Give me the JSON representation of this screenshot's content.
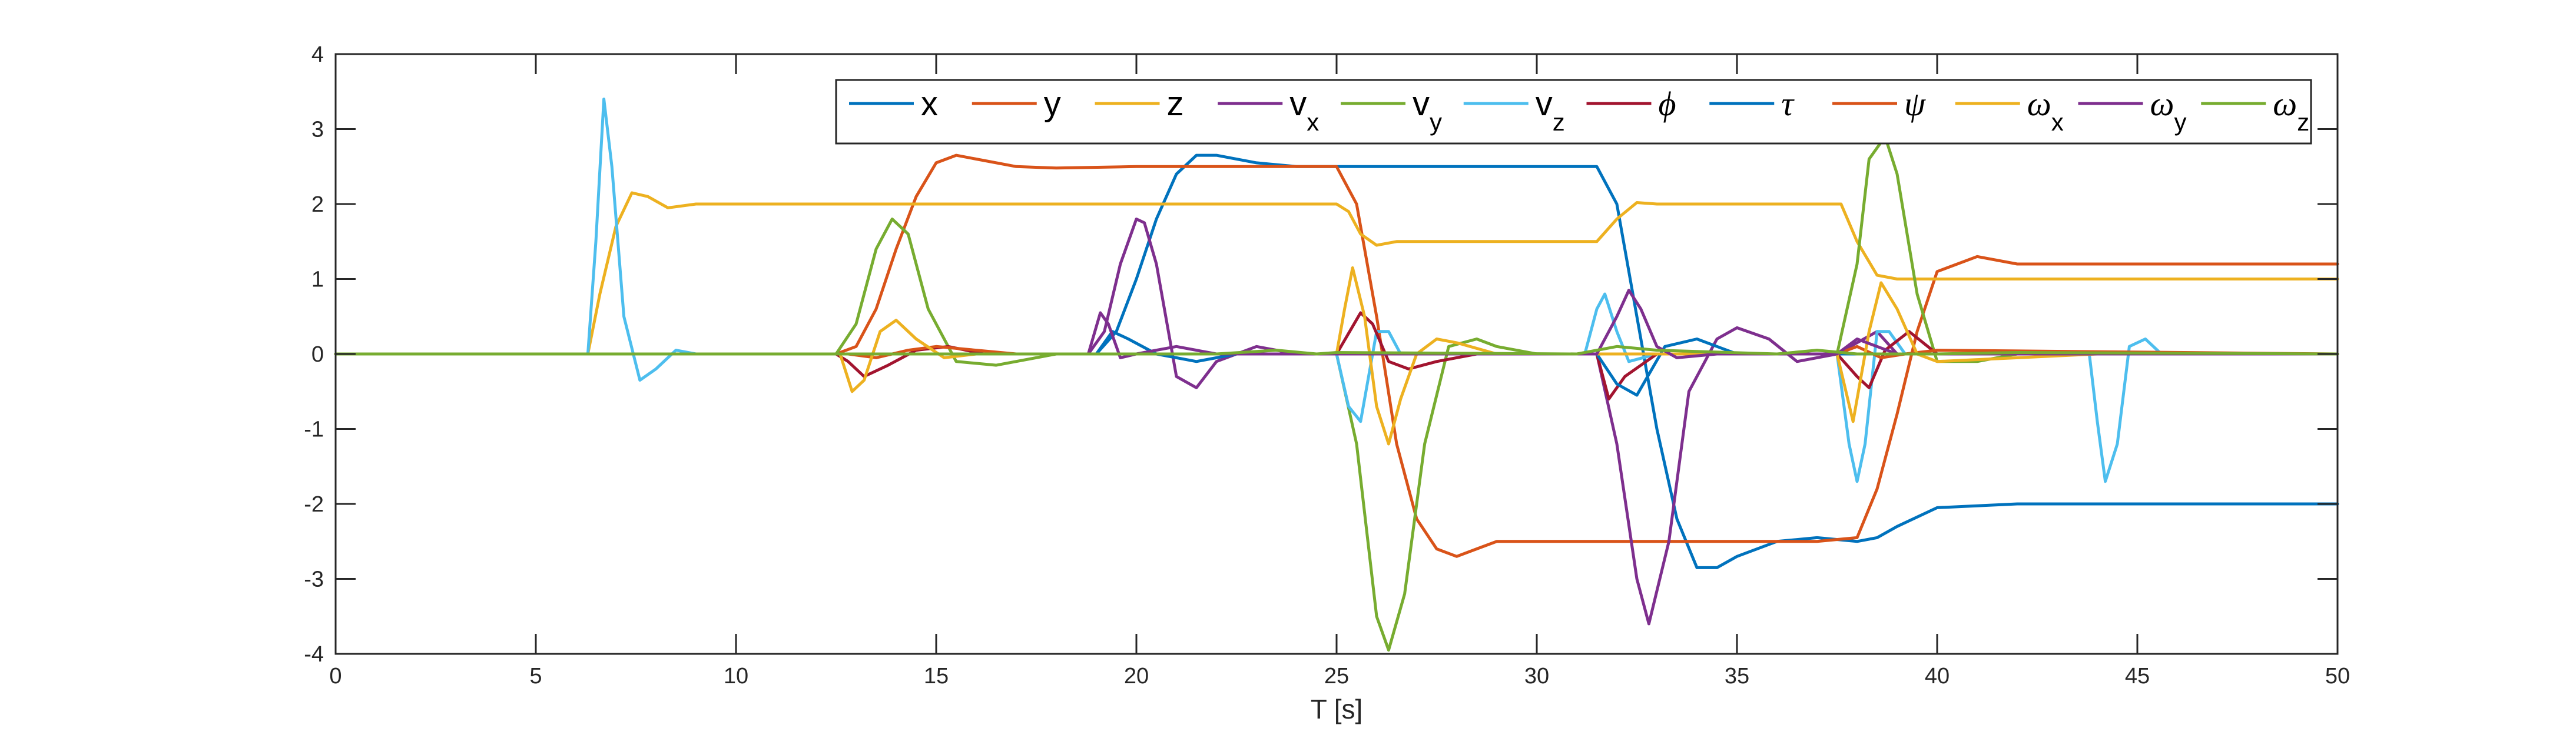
{
  "chart_data": {
    "type": "line",
    "title": "",
    "xlabel": "T [s]",
    "ylabel": "",
    "xlim": [
      0,
      50
    ],
    "ylim": [
      -4,
      4
    ],
    "xticks": [
      0,
      5,
      10,
      15,
      20,
      25,
      30,
      35,
      40,
      45,
      50
    ],
    "yticks": [
      -4,
      -3,
      -2,
      -1,
      0,
      1,
      2,
      3,
      4
    ],
    "grid": false,
    "legend_position": "top-right, horizontal",
    "series": [
      {
        "name": "x",
        "color": "#0072BD",
        "x": [
          0,
          19,
          19.5,
          20,
          20.5,
          21,
          21.5,
          22,
          23,
          24,
          25,
          30,
          31.5,
          32,
          32.5,
          33,
          33.5,
          34,
          34.5,
          35,
          36,
          37,
          38,
          38.5,
          39,
          40,
          42,
          50
        ],
        "y": [
          0,
          0,
          0.3,
          1.0,
          1.8,
          2.4,
          2.65,
          2.65,
          2.55,
          2.5,
          2.5,
          2.5,
          2.5,
          2.0,
          0.5,
          -1.0,
          -2.2,
          -2.85,
          -2.85,
          -2.7,
          -2.5,
          -2.45,
          -2.5,
          -2.45,
          -2.3,
          -2.05,
          -2.0,
          -2.0
        ]
      },
      {
        "name": "y",
        "color": "#D95319",
        "x": [
          0,
          12.5,
          13,
          13.5,
          14,
          14.5,
          15,
          15.5,
          16,
          17,
          18,
          20,
          25,
          25.5,
          26,
          26.5,
          27,
          27.5,
          28,
          28.5,
          29,
          30,
          32,
          35,
          37,
          38,
          38.5,
          39,
          39.5,
          40,
          41,
          42,
          45,
          50
        ],
        "y": [
          0,
          0,
          0.1,
          0.6,
          1.4,
          2.1,
          2.55,
          2.65,
          2.6,
          2.5,
          2.48,
          2.5,
          2.5,
          2.0,
          0.5,
          -1.2,
          -2.2,
          -2.6,
          -2.7,
          -2.6,
          -2.5,
          -2.5,
          -2.5,
          -2.5,
          -2.5,
          -2.45,
          -1.8,
          -0.8,
          0.3,
          1.1,
          1.3,
          1.2,
          1.2,
          1.2
        ]
      },
      {
        "name": "z",
        "color": "#EDB120",
        "x": [
          0,
          6.3,
          6.6,
          7,
          7.4,
          7.8,
          8.3,
          9,
          10,
          15,
          20,
          25,
          25.3,
          25.6,
          26,
          26.5,
          27,
          28,
          30,
          31.5,
          32,
          32.5,
          33,
          35,
          37,
          37.6,
          38,
          38.5,
          39,
          40,
          42,
          45,
          50
        ],
        "y": [
          0,
          0,
          0.8,
          1.7,
          2.15,
          2.1,
          1.95,
          2.0,
          2.0,
          2.0,
          2.0,
          2.0,
          1.9,
          1.6,
          1.45,
          1.5,
          1.5,
          1.5,
          1.5,
          1.5,
          1.8,
          2.02,
          2.0,
          2.0,
          2.0,
          2.0,
          1.5,
          1.05,
          1.0,
          1.0,
          1.0,
          1.0,
          1.0
        ]
      },
      {
        "name": "v_x",
        "color": "#7E2F8E",
        "x": [
          0,
          18.8,
          19.2,
          19.6,
          20,
          20.2,
          20.5,
          21,
          21.5,
          22,
          23,
          24,
          25,
          31.5,
          32,
          32.5,
          32.8,
          33.3,
          33.8,
          34.5,
          35,
          35.8,
          36.5,
          37.5,
          38.5,
          39,
          50
        ],
        "y": [
          0,
          0,
          0.3,
          1.2,
          1.8,
          1.75,
          1.2,
          -0.3,
          -0.45,
          -0.1,
          0.1,
          0.0,
          0.0,
          0.0,
          -1.2,
          -3.0,
          -3.6,
          -2.5,
          -0.5,
          0.2,
          0.35,
          0.2,
          -0.1,
          0.0,
          0.3,
          0.0,
          0.0
        ]
      },
      {
        "name": "v_y",
        "color": "#77AC30",
        "x": [
          0,
          12.5,
          13,
          13.5,
          13.9,
          14.3,
          14.8,
          15.5,
          16.5,
          18,
          25,
          25.5,
          26,
          26.3,
          26.7,
          27.2,
          27.8,
          28.5,
          29,
          30,
          37.5,
          38,
          38.3,
          38.7,
          39,
          39.5,
          40,
          41,
          42,
          50
        ],
        "y": [
          0,
          0,
          0.4,
          1.4,
          1.8,
          1.6,
          0.6,
          -0.1,
          -0.15,
          0.0,
          0.0,
          -1.2,
          -3.5,
          -3.95,
          -3.2,
          -1.2,
          0.1,
          0.2,
          0.1,
          0.0,
          0.0,
          1.2,
          2.6,
          2.9,
          2.4,
          0.8,
          -0.1,
          -0.1,
          0.0,
          0.0
        ]
      },
      {
        "name": "v_z",
        "color": "#4DBEEE",
        "x": [
          0,
          6.3,
          6.5,
          6.7,
          6.9,
          7.2,
          7.6,
          8.0,
          8.5,
          9.0,
          10,
          25,
          25.3,
          25.6,
          26.0,
          26.3,
          26.6,
          27,
          31.2,
          31.5,
          31.7,
          32,
          32.3,
          33,
          37.5,
          37.8,
          38.0,
          38.2,
          38.5,
          38.8,
          39.2,
          40,
          43.8,
          44.0,
          44.2,
          44.5,
          44.8,
          45.2,
          45.6,
          46,
          50
        ],
        "y": [
          0,
          0,
          1.5,
          3.4,
          2.5,
          0.5,
          -0.35,
          -0.2,
          0.05,
          0.0,
          0.0,
          0.0,
          -0.7,
          -0.9,
          0.3,
          0.3,
          0.0,
          0.0,
          0.0,
          0.6,
          0.8,
          0.3,
          -0.1,
          0.0,
          0.0,
          -1.2,
          -1.7,
          -1.2,
          0.3,
          0.3,
          0.0,
          0.0,
          0.0,
          -0.9,
          -1.7,
          -1.2,
          0.1,
          0.2,
          0.0,
          0.0,
          0.0
        ]
      },
      {
        "name": "ϕ",
        "color": "#A2142F",
        "x": [
          0,
          12.5,
          12.8,
          13.2,
          13.8,
          14.5,
          15.3,
          16.2,
          17,
          25,
          25.6,
          25.9,
          26.3,
          26.8,
          27.5,
          28.5,
          30,
          31.5,
          31.8,
          32.2,
          33,
          37.5,
          38,
          38.3,
          38.7,
          39.3,
          40,
          50
        ],
        "y": [
          0,
          0,
          -0.1,
          -0.3,
          -0.15,
          0.05,
          0.1,
          0.0,
          0.0,
          0.0,
          0.55,
          0.4,
          -0.1,
          -0.2,
          -0.1,
          0.0,
          0.0,
          0.0,
          -0.6,
          -0.3,
          0.0,
          0.0,
          -0.3,
          -0.45,
          0.05,
          0.3,
          0.0,
          0.0
        ]
      },
      {
        "name": "τ",
        "color": "#0072BD",
        "x": [
          0,
          19,
          19.4,
          19.8,
          20.5,
          21.5,
          22.5,
          24,
          30,
          31.5,
          32.0,
          32.5,
          33.2,
          34,
          35,
          50
        ],
        "y": [
          0,
          0,
          0.3,
          0.2,
          0.0,
          -0.1,
          0.0,
          0.0,
          0.0,
          0.0,
          -0.4,
          -0.55,
          0.1,
          0.2,
          0.0,
          0.0
        ]
      },
      {
        "name": "ψ",
        "color": "#D95319",
        "x": [
          0,
          12.8,
          13.5,
          14.3,
          15,
          16,
          17,
          37.5,
          38,
          38.6,
          39.2,
          40,
          50
        ],
        "y": [
          0,
          0,
          -0.05,
          0.05,
          0.1,
          0.05,
          0.0,
          0.0,
          0.1,
          -0.05,
          0.0,
          0.05,
          0.0
        ]
      },
      {
        "name": "ω_x",
        "color": "#EDB120",
        "x": [
          0,
          12.6,
          12.9,
          13.2,
          13.6,
          14.0,
          14.5,
          15.2,
          16.0,
          25,
          25.2,
          25.4,
          25.7,
          26.0,
          26.3,
          26.6,
          27.0,
          27.5,
          28,
          29,
          30,
          37.5,
          37.9,
          38.3,
          38.6,
          39,
          39.5,
          40,
          44,
          44.5,
          45.0,
          45.5,
          46,
          50
        ],
        "y": [
          0,
          0,
          -0.5,
          -0.35,
          0.3,
          0.45,
          0.2,
          -0.05,
          0.0,
          0.0,
          0.6,
          1.15,
          0.5,
          -0.7,
          -1.2,
          -0.6,
          0.0,
          0.2,
          0.15,
          0.0,
          0.0,
          0.0,
          -0.9,
          0.3,
          0.95,
          0.6,
          0.0,
          -0.1,
          0.0,
          0.0,
          0.0,
          0.0,
          0.0,
          0.0
        ]
      },
      {
        "name": "ω_y",
        "color": "#7E2F8E",
        "x": [
          0,
          18.8,
          19.1,
          19.3,
          19.6,
          20,
          20.5,
          21,
          22,
          25,
          31.5,
          32,
          32.3,
          32.6,
          33,
          33.5,
          34.5,
          35.5,
          37.5,
          38,
          38.5,
          39,
          40,
          50
        ],
        "y": [
          0,
          0,
          0.55,
          0.4,
          -0.05,
          0.0,
          0.05,
          0.1,
          0.0,
          0.0,
          0.0,
          0.5,
          0.85,
          0.6,
          0.1,
          -0.05,
          0.0,
          0.0,
          0.0,
          0.2,
          0.1,
          0.0,
          0.0,
          0.0
        ]
      },
      {
        "name": "ω_z",
        "color": "#77AC30",
        "x": [
          0,
          22,
          23.5,
          24.5,
          25,
          31,
          32,
          33,
          36,
          37,
          38,
          40,
          42,
          50
        ],
        "y": [
          0,
          0,
          0.05,
          0.0,
          0.02,
          0.0,
          0.1,
          0.05,
          0.0,
          0.05,
          0.0,
          0.0,
          0.02,
          0.0
        ]
      }
    ]
  },
  "legend": {
    "items": [
      {
        "label": "x",
        "sub": "",
        "greek": false,
        "color": "#0072BD"
      },
      {
        "label": "y",
        "sub": "",
        "greek": false,
        "color": "#D95319"
      },
      {
        "label": "z",
        "sub": "",
        "greek": false,
        "color": "#EDB120"
      },
      {
        "label": "v",
        "sub": "x",
        "greek": false,
        "color": "#7E2F8E"
      },
      {
        "label": "v",
        "sub": "y",
        "greek": false,
        "color": "#77AC30"
      },
      {
        "label": "v",
        "sub": "z",
        "greek": false,
        "color": "#4DBEEE"
      },
      {
        "label": "ϕ",
        "sub": "",
        "greek": true,
        "color": "#A2142F"
      },
      {
        "label": "τ",
        "sub": "",
        "greek": true,
        "color": "#0072BD"
      },
      {
        "label": "ψ",
        "sub": "",
        "greek": true,
        "color": "#D95319"
      },
      {
        "label": "ω",
        "sub": "x",
        "greek": true,
        "color": "#EDB120"
      },
      {
        "label": "ω",
        "sub": "y",
        "greek": true,
        "color": "#7E2F8E"
      },
      {
        "label": "ω",
        "sub": "z",
        "greek": true,
        "color": "#77AC30"
      }
    ]
  },
  "axis_color": "#262626"
}
